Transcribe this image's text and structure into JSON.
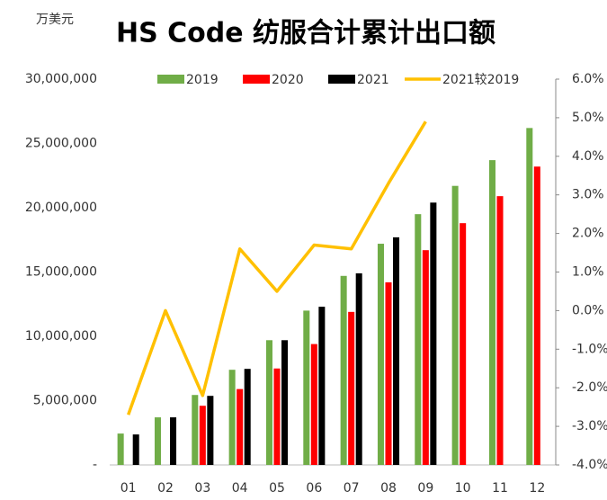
{
  "chart_data": {
    "type": "bar",
    "title": "HS Code 纺服合计累计出口额",
    "y_unit": "万美元",
    "categories": [
      "01",
      "02",
      "03",
      "04",
      "05",
      "06",
      "07",
      "08",
      "09",
      "10",
      "11",
      "12"
    ],
    "series": [
      {
        "name": "2019",
        "color": "#70ad47",
        "values": [
          2440000,
          3700000,
          5440000,
          7400000,
          9700000,
          12000000,
          14700000,
          17200000,
          19500000,
          21700000,
          23700000,
          26200000
        ]
      },
      {
        "name": "2020",
        "color": "#ff0000",
        "values": [
          null,
          null,
          4600000,
          5900000,
          7500000,
          9400000,
          11900000,
          14200000,
          16700000,
          18800000,
          20900000,
          23200000
        ]
      },
      {
        "name": "2021",
        "color": "#000000",
        "values": [
          2370000,
          3700000,
          5370000,
          7470000,
          9700000,
          12300000,
          14900000,
          17700000,
          20400000,
          null,
          null,
          null
        ]
      },
      {
        "name": "2021较2019",
        "color": "#ffc000",
        "type": "line",
        "axis": "y2",
        "values": [
          -2.7,
          0.0,
          -2.2,
          1.6,
          0.5,
          1.7,
          1.6,
          3.3,
          4.9,
          null,
          null,
          null
        ]
      }
    ],
    "ylim": [
      0,
      30000000
    ],
    "yticks": [
      {
        "value": 0,
        "label": "-"
      },
      {
        "value": 5000000,
        "label": "5,000,000"
      },
      {
        "value": 10000000,
        "label": "10,000,000"
      },
      {
        "value": 15000000,
        "label": "15,000,000"
      },
      {
        "value": 20000000,
        "label": "20,000,000"
      },
      {
        "value": 25000000,
        "label": "25,000,000"
      },
      {
        "value": 30000000,
        "label": "30,000,000"
      }
    ],
    "y2lim": [
      -4,
      6
    ],
    "y2ticks": [
      {
        "value": -4,
        "label": "-4.0%"
      },
      {
        "value": -3,
        "label": "-3.0%"
      },
      {
        "value": -2,
        "label": "-2.0%"
      },
      {
        "value": -1,
        "label": "-1.0%"
      },
      {
        "value": 0,
        "label": "0.0%"
      },
      {
        "value": 1,
        "label": "1.0%"
      },
      {
        "value": 2,
        "label": "2.0%"
      },
      {
        "value": 3,
        "label": "3.0%"
      },
      {
        "value": 4,
        "label": "4.0%"
      },
      {
        "value": 5,
        "label": "5.0%"
      },
      {
        "value": 6,
        "label": "6.0%"
      }
    ],
    "grid": false,
    "legend": "top"
  }
}
